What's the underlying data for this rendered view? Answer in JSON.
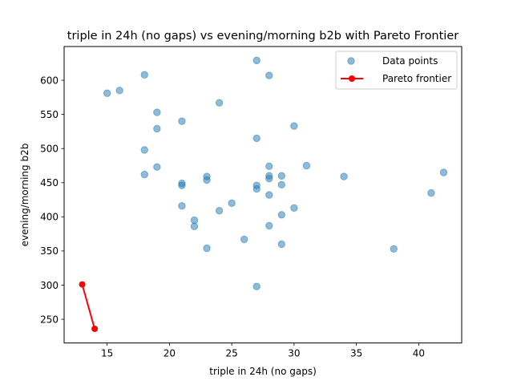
{
  "chart_data": {
    "type": "scatter",
    "title": "triple in 24h (no gaps) vs evening/morning b2b with Pareto Frontier",
    "xlabel": "triple in 24h (no gaps)",
    "ylabel": "evening/morning b2b",
    "xlim": [
      11.55,
      43.45
    ],
    "ylim": [
      215.3,
      649.4
    ],
    "xticks": [
      15,
      20,
      25,
      30,
      35,
      40
    ],
    "yticks": [
      250,
      300,
      350,
      400,
      450,
      500,
      550,
      600
    ],
    "xtick_labels": [
      "15",
      "20",
      "25",
      "30",
      "35",
      "40"
    ],
    "ytick_labels": [
      "250",
      "300",
      "350",
      "400",
      "450",
      "500",
      "550",
      "600"
    ],
    "legend_position": "top-right",
    "grid": false,
    "series": [
      {
        "name": "Data points",
        "kind": "scatter",
        "color": "#1f77b4",
        "points": [
          [
            15,
            581
          ],
          [
            16,
            585
          ],
          [
            18,
            608
          ],
          [
            18,
            498
          ],
          [
            18,
            462
          ],
          [
            19,
            553
          ],
          [
            19,
            529
          ],
          [
            19,
            473
          ],
          [
            21,
            540
          ],
          [
            21,
            449
          ],
          [
            21,
            446
          ],
          [
            21,
            416
          ],
          [
            22,
            395
          ],
          [
            22,
            386
          ],
          [
            23,
            459
          ],
          [
            23,
            454
          ],
          [
            23,
            354
          ],
          [
            24,
            567
          ],
          [
            24,
            409
          ],
          [
            25,
            420
          ],
          [
            26,
            367
          ],
          [
            27,
            629
          ],
          [
            27,
            515
          ],
          [
            27,
            446
          ],
          [
            27,
            441
          ],
          [
            27,
            298
          ],
          [
            28,
            607
          ],
          [
            28,
            474
          ],
          [
            28,
            460
          ],
          [
            28,
            456
          ],
          [
            28,
            432
          ],
          [
            28,
            387
          ],
          [
            29,
            460
          ],
          [
            29,
            447
          ],
          [
            29,
            403
          ],
          [
            29,
            360
          ],
          [
            30,
            533
          ],
          [
            30,
            413
          ],
          [
            31,
            475
          ],
          [
            34,
            459
          ],
          [
            38,
            353
          ],
          [
            41,
            435
          ],
          [
            42,
            465
          ]
        ]
      },
      {
        "name": "Pareto frontier",
        "kind": "line",
        "color": "#ff0000",
        "points": [
          [
            13,
            301
          ],
          [
            14,
            236
          ]
        ]
      }
    ]
  }
}
